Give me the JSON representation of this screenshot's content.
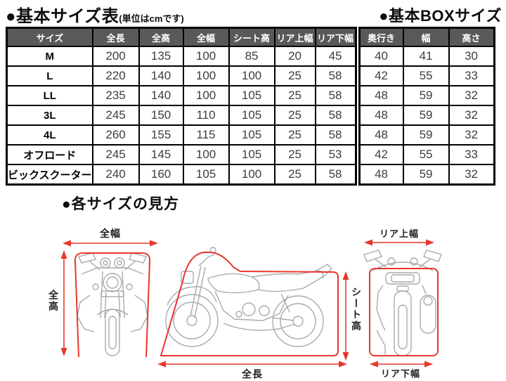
{
  "header": {
    "title_main": "●基本サイズ表",
    "title_main_note": "(単位はcmです)",
    "title_box": "●基本BOXサイズ",
    "section_title": "●各サイズの見方"
  },
  "size_table": {
    "columns": [
      "サイズ",
      "全長",
      "全高",
      "全幅",
      "シート高",
      "リア上幅",
      "リア下幅"
    ],
    "rows": [
      [
        "M",
        200,
        135,
        100,
        85,
        20,
        45
      ],
      [
        "L",
        220,
        140,
        100,
        100,
        25,
        58
      ],
      [
        "LL",
        235,
        140,
        100,
        105,
        25,
        58
      ],
      [
        "3L",
        245,
        150,
        110,
        105,
        25,
        58
      ],
      [
        "4L",
        260,
        155,
        115,
        105,
        25,
        58
      ],
      [
        "オフロード",
        245,
        145,
        100,
        105,
        25,
        53
      ],
      [
        "ビックスクーター",
        240,
        160,
        105,
        100,
        25,
        58
      ]
    ]
  },
  "box_table": {
    "columns": [
      "奥行き",
      "幅",
      "高さ"
    ],
    "rows": [
      [
        40,
        41,
        30
      ],
      [
        42,
        55,
        33
      ],
      [
        48,
        59,
        32
      ],
      [
        48,
        59,
        32
      ],
      [
        48,
        59,
        32
      ],
      [
        42,
        55,
        33
      ],
      [
        48,
        59,
        32
      ]
    ]
  },
  "diagram": {
    "labels": {
      "overall_width": "全幅",
      "overall_height": "全高",
      "overall_length": "全長",
      "seat_height": "シート高",
      "rear_upper_width": "リア上幅",
      "rear_lower_width": "リア下幅"
    }
  },
  "colors": {
    "header_bg": "#58595b",
    "table_border": "#000000",
    "dimension_red": "#e8372c",
    "bike_line_gray": "#a6abae"
  }
}
